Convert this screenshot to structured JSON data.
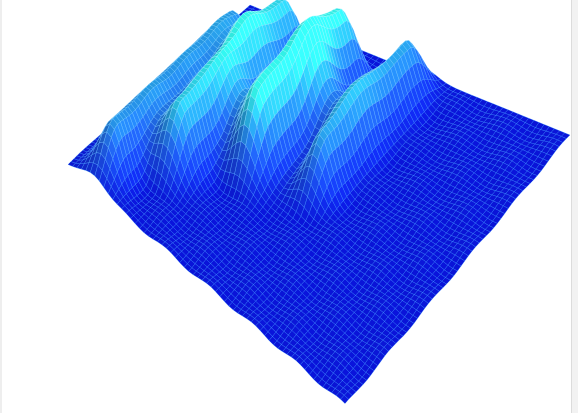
{
  "scene": {
    "background": "#ffffff",
    "subject": "3d-wireframe-surface",
    "render": {
      "mesh": "wireframe-grid",
      "low_color": "#0a14d8",
      "mid_color": "#1f5fe0",
      "high_color": "#32f0e6",
      "line_low": "#3a8cff",
      "line_high": "#aafcff"
    }
  }
}
